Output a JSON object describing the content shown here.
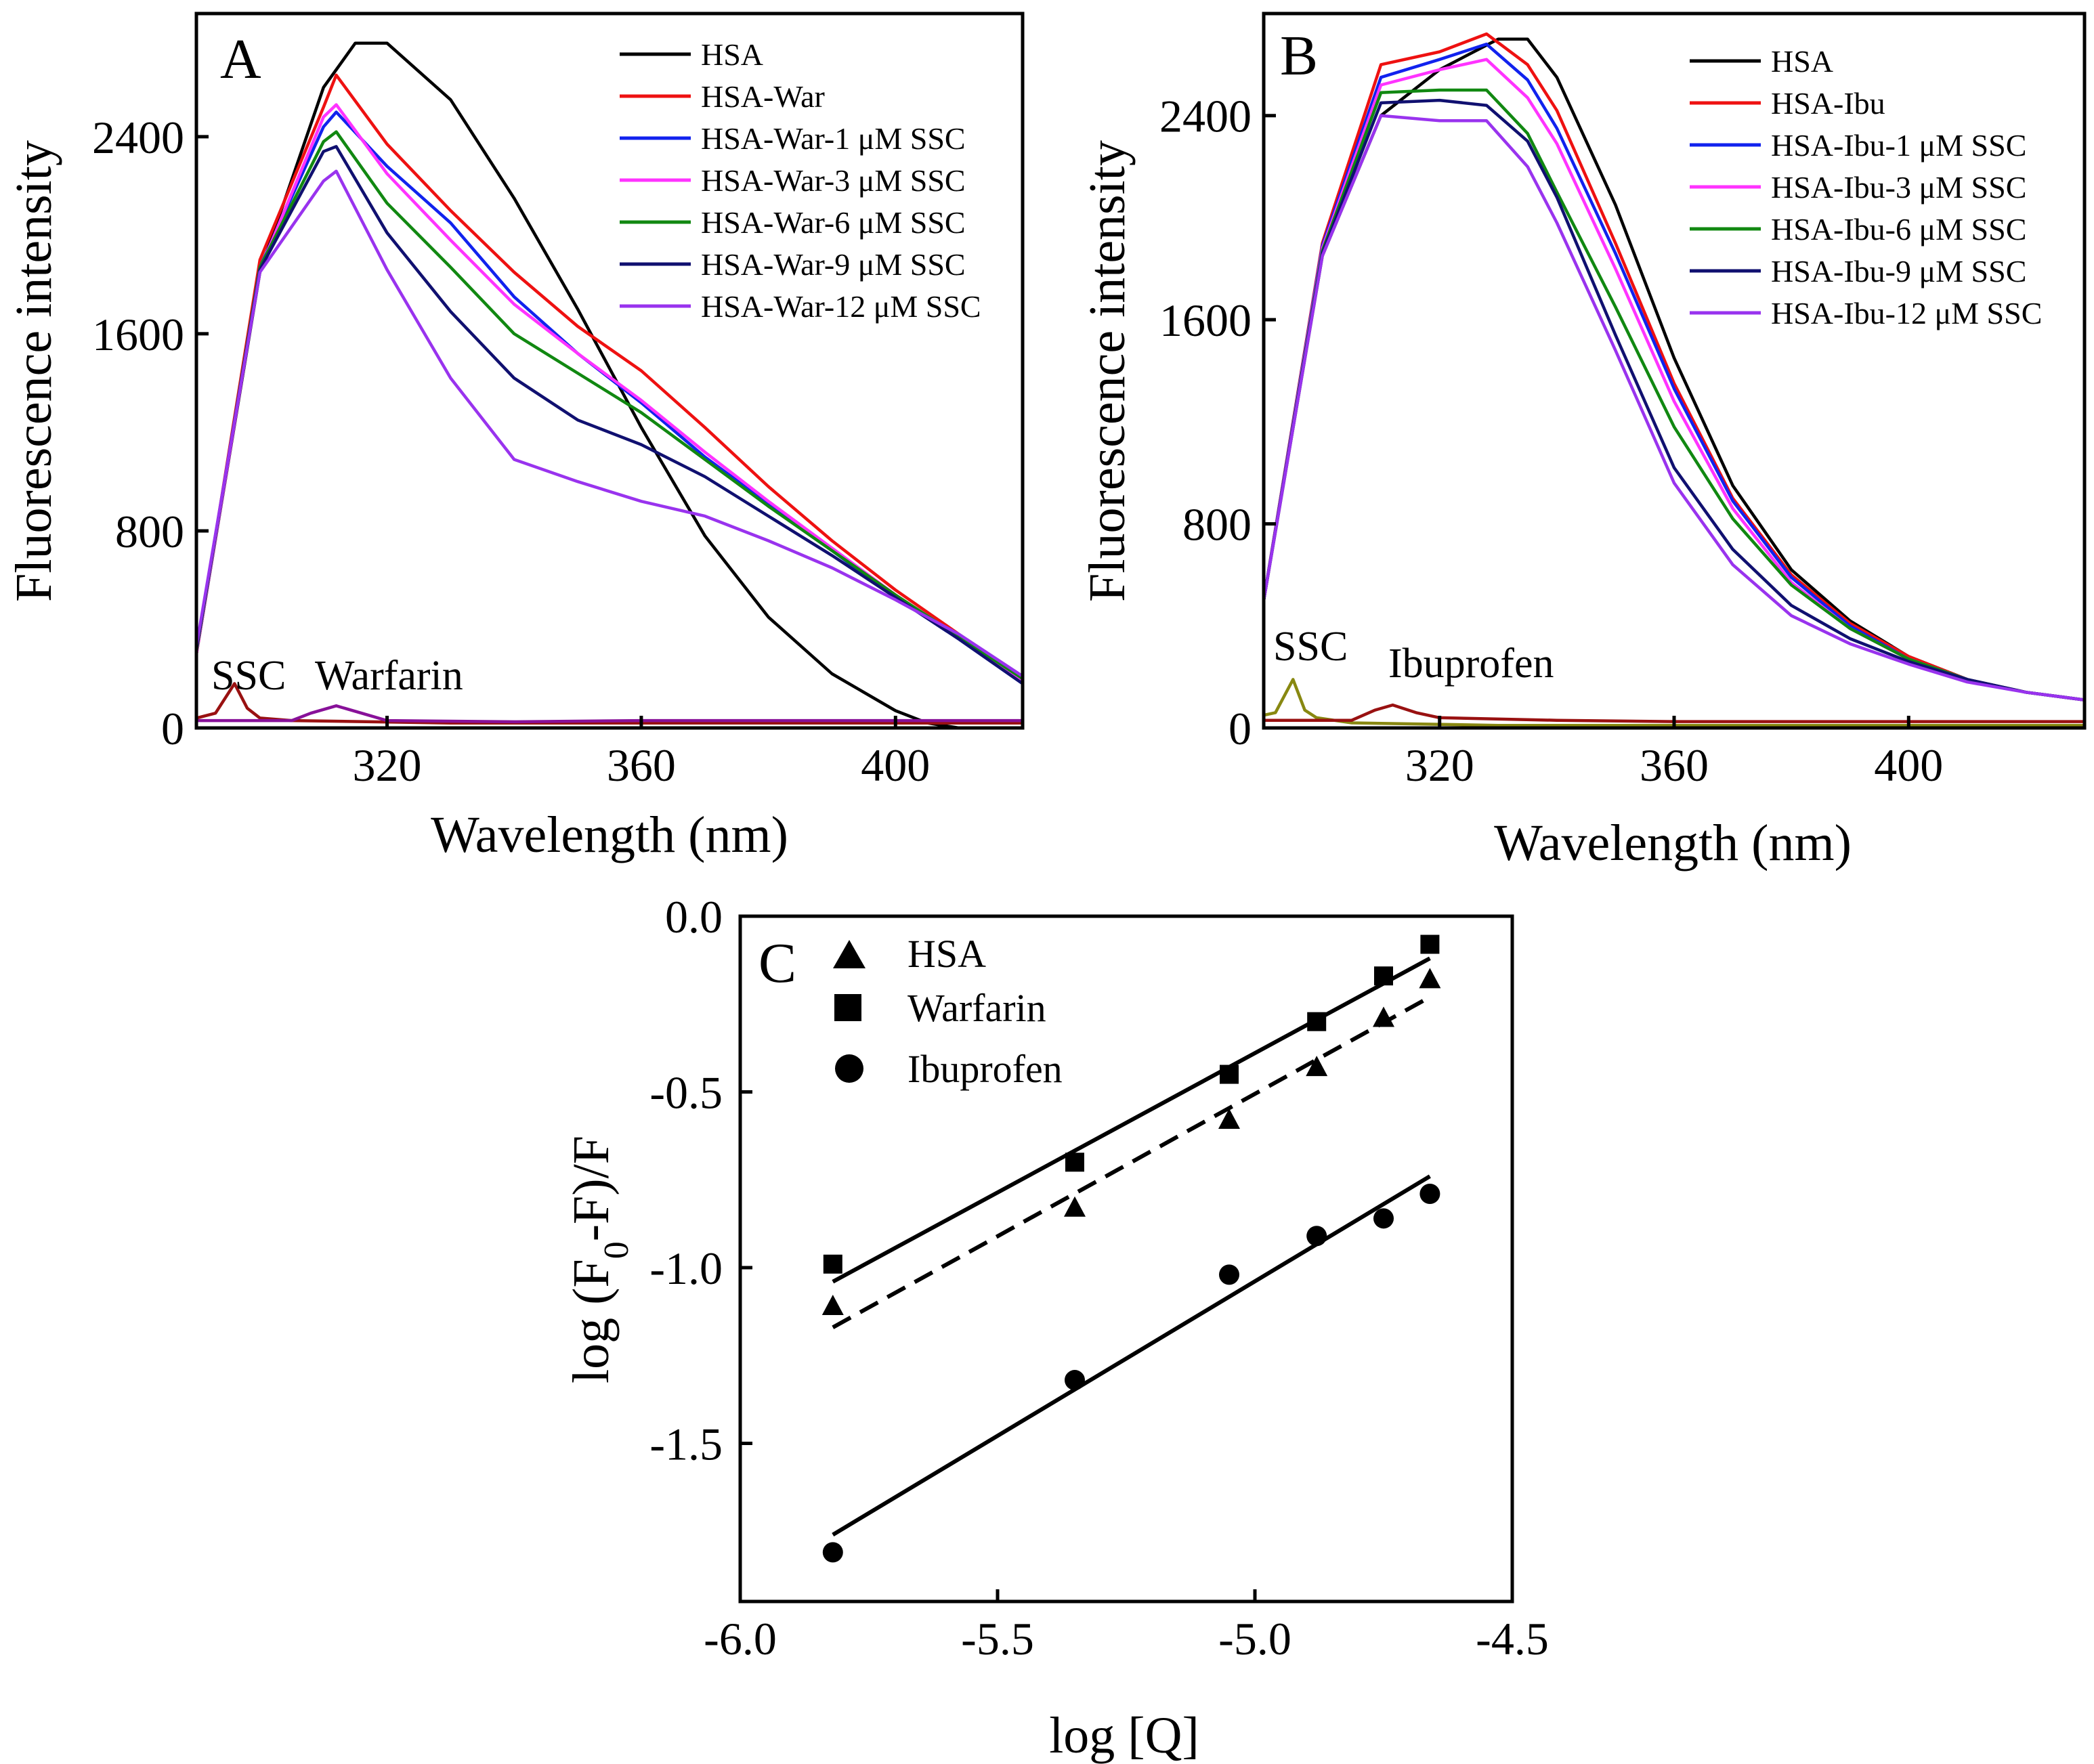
{
  "chart_data": [
    {
      "panel": "A",
      "type": "line",
      "xlabel": "Wavelength (nm)",
      "ylabel": "Fluorescence intensity",
      "xlim": [
        290,
        420
      ],
      "ylim": [
        0,
        2900
      ],
      "xticks": [
        320,
        360,
        400
      ],
      "yticks": [
        0,
        800,
        1600,
        2400
      ],
      "grid": false,
      "legend_position": "top-right",
      "annotations": [
        {
          "text": "SSC",
          "x": 296,
          "y": 230
        },
        {
          "text": "Warfarin",
          "x": 323,
          "y": 160
        }
      ],
      "series": [
        {
          "name": "HSA",
          "color": "#000000",
          "x": [
            290,
            300,
            310,
            315,
            320,
            330,
            340,
            350,
            360,
            370,
            380,
            390,
            400,
            405,
            410,
            420
          ],
          "y": [
            300,
            1850,
            2600,
            2780,
            2780,
            2550,
            2150,
            1700,
            1220,
            780,
            450,
            220,
            70,
            20,
            0,
            0
          ]
        },
        {
          "name": "HSA-War",
          "color": "#ee1111",
          "x": [
            290,
            300,
            310,
            312,
            320,
            330,
            340,
            350,
            360,
            370,
            380,
            390,
            400,
            410,
            420
          ],
          "y": [
            300,
            1900,
            2520,
            2650,
            2370,
            2100,
            1850,
            1630,
            1450,
            1220,
            980,
            760,
            560,
            380,
            200
          ]
        },
        {
          "name": "HSA-War-1 μM SSC",
          "color": "#1122ee",
          "x": [
            290,
            300,
            310,
            312,
            320,
            330,
            340,
            350,
            360,
            370,
            380,
            390,
            400,
            410,
            420
          ],
          "y": [
            310,
            1870,
            2440,
            2500,
            2280,
            2050,
            1750,
            1520,
            1320,
            1100,
            910,
            720,
            530,
            360,
            180
          ]
        },
        {
          "name": "HSA-War-3 μM SSC",
          "color": "#ff33ff",
          "x": [
            290,
            300,
            310,
            312,
            320,
            330,
            340,
            350,
            360,
            370,
            380,
            390,
            400,
            410,
            420
          ],
          "y": [
            300,
            1860,
            2480,
            2530,
            2250,
            1980,
            1720,
            1520,
            1330,
            1120,
            920,
            730,
            540,
            370,
            190
          ]
        },
        {
          "name": "HSA-War-6 μM SSC",
          "color": "#118811",
          "x": [
            290,
            300,
            310,
            312,
            320,
            330,
            340,
            350,
            360,
            370,
            380,
            390,
            400,
            410,
            420
          ],
          "y": [
            310,
            1870,
            2380,
            2420,
            2130,
            1870,
            1600,
            1440,
            1280,
            1090,
            900,
            720,
            540,
            370,
            200
          ]
        },
        {
          "name": "HSA-War-9 μM SSC",
          "color": "#101070",
          "x": [
            290,
            300,
            310,
            312,
            320,
            330,
            340,
            350,
            360,
            370,
            380,
            390,
            400,
            410,
            420
          ],
          "y": [
            320,
            1860,
            2340,
            2360,
            2010,
            1690,
            1420,
            1250,
            1150,
            1020,
            860,
            700,
            530,
            360,
            180
          ]
        },
        {
          "name": "HSA-War-12 μM SSC",
          "color": "#9933ee",
          "x": [
            290,
            300,
            310,
            312,
            320,
            330,
            340,
            350,
            360,
            370,
            380,
            390,
            400,
            410,
            420
          ],
          "y": [
            330,
            1850,
            2220,
            2260,
            1860,
            1420,
            1090,
            1000,
            920,
            860,
            760,
            650,
            520,
            380,
            210
          ]
        },
        {
          "name": "SSC",
          "color": "#991111",
          "x": [
            290,
            293,
            296,
            298,
            300,
            305,
            330,
            360,
            400,
            420
          ],
          "y": [
            40,
            60,
            180,
            80,
            40,
            30,
            20,
            20,
            20,
            20
          ]
        },
        {
          "name": "Warfarin",
          "color": "#881199",
          "x": [
            290,
            305,
            308,
            312,
            316,
            320,
            340,
            360,
            400,
            420
          ],
          "y": [
            30,
            30,
            60,
            90,
            60,
            30,
            25,
            30,
            30,
            30
          ]
        }
      ]
    },
    {
      "panel": "B",
      "type": "line",
      "xlabel": "Wavelength (nm)",
      "ylabel": "Fluorescence intensity",
      "xlim": [
        290,
        430
      ],
      "ylim": [
        0,
        2800
      ],
      "xticks": [
        320,
        360,
        400
      ],
      "yticks": [
        0,
        800,
        1600,
        2400
      ],
      "grid": false,
      "legend_position": "top-right",
      "annotations": [
        {
          "text": "SSC",
          "x": 294,
          "y": 240
        },
        {
          "text": "Ibuprofen",
          "x": 312,
          "y": 170
        }
      ],
      "series": [
        {
          "name": "HSA",
          "color": "#000000",
          "x": [
            290,
            300,
            310,
            320,
            330,
            335,
            340,
            350,
            360,
            370,
            380,
            390,
            400,
            410,
            420,
            430
          ],
          "y": [
            500,
            1850,
            2400,
            2580,
            2700,
            2700,
            2550,
            2050,
            1450,
            950,
            620,
            420,
            280,
            190,
            140,
            110
          ]
        },
        {
          "name": "HSA-Ibu",
          "color": "#ee1111",
          "x": [
            290,
            300,
            310,
            320,
            328,
            335,
            340,
            350,
            360,
            370,
            380,
            390,
            400,
            410,
            420,
            430
          ],
          "y": [
            500,
            1900,
            2600,
            2650,
            2720,
            2600,
            2420,
            1900,
            1350,
            900,
            600,
            410,
            280,
            190,
            140,
            110
          ]
        },
        {
          "name": "HSA-Ibu-1 μM SSC",
          "color": "#1122ee",
          "x": [
            290,
            300,
            310,
            320,
            328,
            335,
            340,
            350,
            360,
            370,
            380,
            390,
            400,
            410,
            420,
            430
          ],
          "y": [
            500,
            1890,
            2550,
            2620,
            2680,
            2540,
            2350,
            1860,
            1330,
            890,
            590,
            400,
            270,
            190,
            140,
            110
          ]
        },
        {
          "name": "HSA-Ibu-3 μM SSC",
          "color": "#ff33ff",
          "x": [
            290,
            300,
            310,
            320,
            328,
            335,
            340,
            350,
            360,
            370,
            380,
            390,
            400,
            410,
            420,
            430
          ],
          "y": [
            500,
            1880,
            2520,
            2580,
            2620,
            2470,
            2290,
            1800,
            1280,
            860,
            570,
            390,
            270,
            190,
            140,
            110
          ]
        },
        {
          "name": "HSA-Ibu-6 μM SSC",
          "color": "#118811",
          "x": [
            290,
            300,
            310,
            320,
            328,
            335,
            340,
            350,
            360,
            370,
            380,
            390,
            400,
            410,
            420,
            430
          ],
          "y": [
            500,
            1870,
            2490,
            2500,
            2500,
            2330,
            2100,
            1650,
            1180,
            820,
            560,
            390,
            270,
            190,
            140,
            110
          ]
        },
        {
          "name": "HSA-Ibu-9 μM SSC",
          "color": "#101070",
          "x": [
            290,
            300,
            310,
            320,
            328,
            335,
            340,
            350,
            360,
            370,
            380,
            390,
            400,
            410,
            420,
            430
          ],
          "y": [
            500,
            1860,
            2450,
            2460,
            2440,
            2300,
            2080,
            1540,
            1020,
            700,
            480,
            350,
            260,
            190,
            140,
            110
          ]
        },
        {
          "name": "HSA-Ibu-12 μM SSC",
          "color": "#9933ee",
          "x": [
            290,
            300,
            310,
            320,
            328,
            335,
            340,
            350,
            360,
            370,
            380,
            390,
            400,
            410,
            420,
            430
          ],
          "y": [
            500,
            1850,
            2400,
            2380,
            2380,
            2200,
            1980,
            1480,
            960,
            640,
            440,
            330,
            250,
            180,
            140,
            110
          ]
        },
        {
          "name": "SSC",
          "color": "#888811",
          "x": [
            290,
            292,
            295,
            297,
            299,
            305,
            330,
            360,
            400,
            430
          ],
          "y": [
            50,
            60,
            190,
            70,
            40,
            20,
            10,
            10,
            10,
            10
          ]
        },
        {
          "name": "Ibuprofen",
          "color": "#991111",
          "x": [
            290,
            305,
            309,
            312,
            316,
            320,
            340,
            360,
            400,
            430
          ],
          "y": [
            30,
            30,
            70,
            90,
            60,
            40,
            30,
            25,
            25,
            25
          ]
        }
      ]
    },
    {
      "panel": "C",
      "type": "scatter",
      "xlabel": "log [Q]",
      "ylabel": "log (F0-F)/F",
      "xlim": [
        -6.0,
        -4.5
      ],
      "ylim": [
        -1.95,
        0.0
      ],
      "xticks": [
        -6.0,
        -5.5,
        -5.0,
        -4.5
      ],
      "yticks": [
        0.0,
        -0.5,
        -1.0,
        -1.5
      ],
      "grid": false,
      "legend_position": "top-left",
      "series": [
        {
          "name": "HSA",
          "marker": "triangle",
          "fit": "dashed",
          "x": [
            -5.82,
            -5.35,
            -5.05,
            -4.88,
            -4.75,
            -4.66
          ],
          "y": [
            -1.11,
            -0.83,
            -0.58,
            -0.43,
            -0.29,
            -0.18
          ],
          "fit_line": [
            [
              -5.82,
              -1.17
            ],
            [
              -4.66,
              -0.23
            ]
          ]
        },
        {
          "name": "Warfarin",
          "marker": "square",
          "fit": "solid",
          "x": [
            -5.82,
            -5.35,
            -5.05,
            -4.88,
            -4.75,
            -4.66
          ],
          "y": [
            -0.99,
            -0.7,
            -0.45,
            -0.3,
            -0.17,
            -0.08
          ],
          "fit_line": [
            [
              -5.82,
              -1.04
            ],
            [
              -4.66,
              -0.12
            ]
          ]
        },
        {
          "name": "Ibuprofen",
          "marker": "circle",
          "fit": "solid",
          "x": [
            -5.82,
            -5.35,
            -5.05,
            -4.88,
            -4.75,
            -4.66
          ],
          "y": [
            -1.81,
            -1.32,
            -1.02,
            -0.91,
            -0.86,
            -0.79
          ],
          "fit_line": [
            [
              -5.82,
              -1.76
            ],
            [
              -4.66,
              -0.74
            ]
          ]
        }
      ]
    }
  ],
  "panels": {
    "A": {
      "letter": "A",
      "xlabel": "Wavelength (nm)",
      "ylabel": "Fluorescence intensity",
      "annot_ssc": "SSC",
      "annot_second": "Warfarin",
      "legend": [
        "HSA",
        "HSA-War",
        "HSA-War-1 μM SSC",
        "HSA-War-3 μM SSC",
        "HSA-War-6 μM SSC",
        "HSA-War-9 μM SSC",
        "HSA-War-12 μM SSC"
      ],
      "legend_colors": [
        "#000000",
        "#ee1111",
        "#1122ee",
        "#ff33ff",
        "#118811",
        "#101070",
        "#9933ee"
      ]
    },
    "B": {
      "letter": "B",
      "xlabel": "Wavelength (nm)",
      "ylabel": "Fluorescence intensity",
      "annot_ssc": "SSC",
      "annot_second": "Ibuprofen",
      "legend": [
        "HSA",
        "HSA-Ibu",
        "HSA-Ibu-1 μM SSC",
        "HSA-Ibu-3 μM SSC",
        "HSA-Ibu-6 μM SSC",
        "HSA-Ibu-9 μM SSC",
        "HSA-Ibu-12 μM SSC"
      ],
      "legend_colors": [
        "#000000",
        "#ee1111",
        "#1122ee",
        "#ff33ff",
        "#118811",
        "#101070",
        "#9933ee"
      ]
    },
    "C": {
      "letter": "C",
      "xlabel": "log [Q]",
      "ylabel_prefix": "log (F",
      "ylabel_sub": "0",
      "ylabel_suffix": "-F)/F",
      "legend": [
        "HSA",
        "Warfarin",
        "Ibuprofen"
      ]
    }
  }
}
